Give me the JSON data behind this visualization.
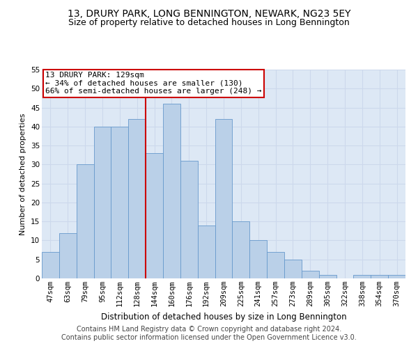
{
  "title": "13, DRURY PARK, LONG BENNINGTON, NEWARK, NG23 5EY",
  "subtitle": "Size of property relative to detached houses in Long Bennington",
  "xlabel": "Distribution of detached houses by size in Long Bennington",
  "ylabel": "Number of detached properties",
  "categories": [
    "47sqm",
    "63sqm",
    "79sqm",
    "95sqm",
    "112sqm",
    "128sqm",
    "144sqm",
    "160sqm",
    "176sqm",
    "192sqm",
    "209sqm",
    "225sqm",
    "241sqm",
    "257sqm",
    "273sqm",
    "289sqm",
    "305sqm",
    "322sqm",
    "338sqm",
    "354sqm",
    "370sqm"
  ],
  "values": [
    7,
    12,
    30,
    40,
    40,
    42,
    33,
    46,
    31,
    14,
    42,
    15,
    10,
    7,
    5,
    2,
    1,
    0,
    1,
    1,
    1
  ],
  "bar_color": "#bad0e8",
  "bar_edge_color": "#6699cc",
  "vline_x_index": 5,
  "vline_color": "#cc0000",
  "annotation_text": "13 DRURY PARK: 129sqm\n← 34% of detached houses are smaller (130)\n66% of semi-detached houses are larger (248) →",
  "annotation_box_facecolor": "#ffffff",
  "annotation_box_edgecolor": "#cc0000",
  "ylim": [
    0,
    55
  ],
  "yticks": [
    0,
    5,
    10,
    15,
    20,
    25,
    30,
    35,
    40,
    45,
    50,
    55
  ],
  "grid_color": "#ccd8ec",
  "background_color": "#dde8f5",
  "footer_line1": "Contains HM Land Registry data © Crown copyright and database right 2024.",
  "footer_line2": "Contains public sector information licensed under the Open Government Licence v3.0.",
  "title_fontsize": 10,
  "subtitle_fontsize": 9,
  "xlabel_fontsize": 8.5,
  "ylabel_fontsize": 8,
  "tick_fontsize": 7.5,
  "annotation_fontsize": 8,
  "footer_fontsize": 7
}
